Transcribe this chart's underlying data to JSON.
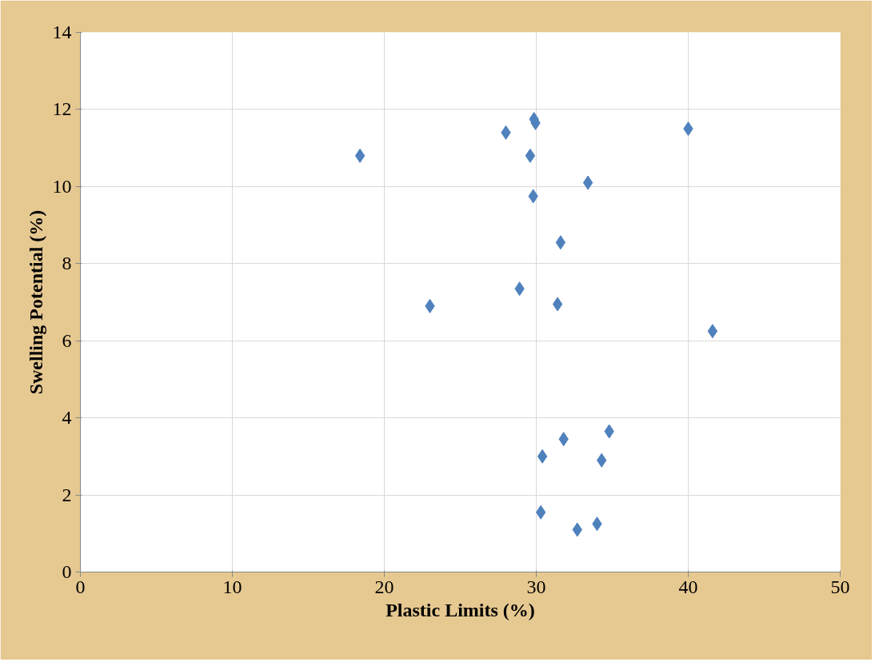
{
  "chart_data": {
    "type": "scatter",
    "xlabel": "Plastic Limits (%)",
    "ylabel": "Swelling Potential (%)",
    "x": [
      18.4,
      23.0,
      28.0,
      29.6,
      29.85,
      29.95,
      29.8,
      28.9,
      33.4,
      31.6,
      31.4,
      40.0,
      41.6,
      30.4,
      31.8,
      34.8,
      34.3,
      30.3,
      32.7,
      34.0
    ],
    "values": [
      10.8,
      6.9,
      11.4,
      10.8,
      11.75,
      11.65,
      9.75,
      7.35,
      10.1,
      8.55,
      6.95,
      11.5,
      6.25,
      3.0,
      3.45,
      3.65,
      2.9,
      1.55,
      1.1,
      1.25
    ],
    "color": "#4f81bd",
    "marker": "diamond",
    "xlim": [
      0,
      50
    ],
    "ylim": [
      0,
      14
    ],
    "xticks": [
      0,
      10,
      20,
      30,
      40,
      50
    ],
    "yticks": [
      0,
      2,
      4,
      6,
      8,
      10,
      12,
      14
    ],
    "grid": true
  }
}
